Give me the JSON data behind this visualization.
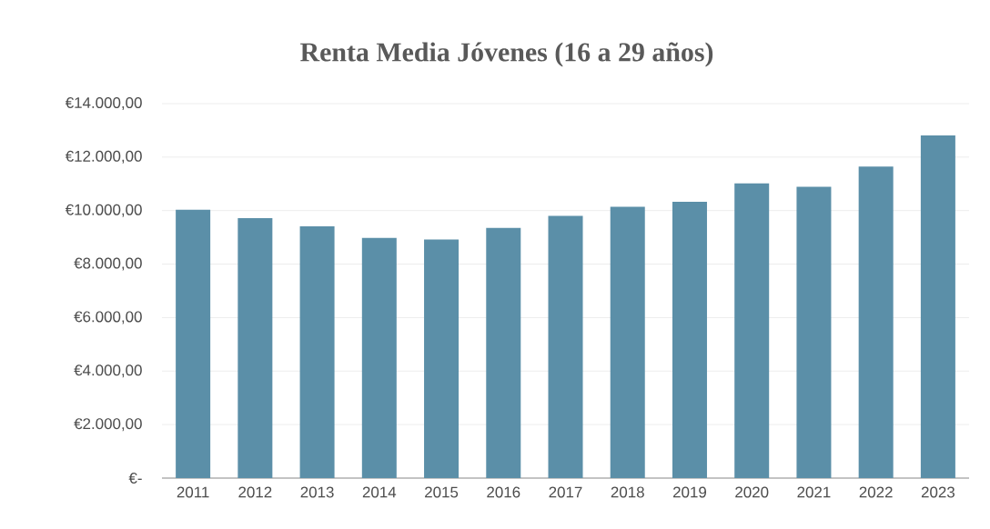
{
  "chart_data": {
    "type": "bar",
    "title": "Renta Media Jóvenes (16 a 29 años)",
    "categories": [
      "2011",
      "2012",
      "2013",
      "2014",
      "2015",
      "2016",
      "2017",
      "2018",
      "2019",
      "2020",
      "2021",
      "2022",
      "2023"
    ],
    "values": [
      10030,
      9720,
      9410,
      8980,
      8920,
      9350,
      9800,
      10140,
      10330,
      11020,
      10890,
      11650,
      12810
    ],
    "color": "#5b8fa8",
    "ylim": [
      0,
      14000
    ],
    "yticks": [
      {
        "value": 0,
        "label": "€-"
      },
      {
        "value": 2000,
        "label": "€2.000,00"
      },
      {
        "value": 4000,
        "label": "€4.000,00"
      },
      {
        "value": 6000,
        "label": "€6.000,00"
      },
      {
        "value": 8000,
        "label": "€8.000,00"
      },
      {
        "value": 10000,
        "label": "€10.000,00"
      },
      {
        "value": 12000,
        "label": "€12.000,00"
      },
      {
        "value": 14000,
        "label": "€14.000,00"
      }
    ],
    "grid": "y"
  }
}
